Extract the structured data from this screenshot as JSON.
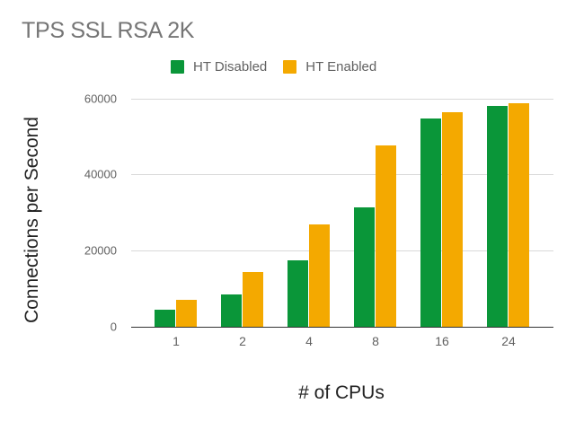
{
  "chart_data": {
    "type": "bar",
    "title": "TPS SSL RSA 2K",
    "xlabel": "# of CPUs",
    "ylabel": "Connections per Second",
    "categories": [
      "1",
      "2",
      "4",
      "8",
      "16",
      "24"
    ],
    "series": [
      {
        "name": "HT Disabled",
        "color": "#0a9639",
        "values": [
          4400,
          8500,
          17400,
          31400,
          54800,
          58200
        ]
      },
      {
        "name": "HT Enabled",
        "color": "#f4a900",
        "values": [
          7200,
          14300,
          26900,
          47600,
          56400,
          58900
        ]
      }
    ],
    "ylim": [
      0,
      60000
    ],
    "yticks": [
      "0",
      "20000",
      "40000",
      "60000"
    ],
    "grid": true,
    "legend_position": "top"
  },
  "title": "TPS SSL RSA 2K",
  "legend": [
    {
      "label": "HT Disabled",
      "color": "#0a9639"
    },
    {
      "label": "HT Enabled",
      "color": "#f4a900"
    }
  ],
  "axes": {
    "xlabel": "# of CPUs",
    "ylabel": "Connections per Second",
    "yticks": [
      "60000",
      "40000",
      "20000",
      "0"
    ]
  }
}
